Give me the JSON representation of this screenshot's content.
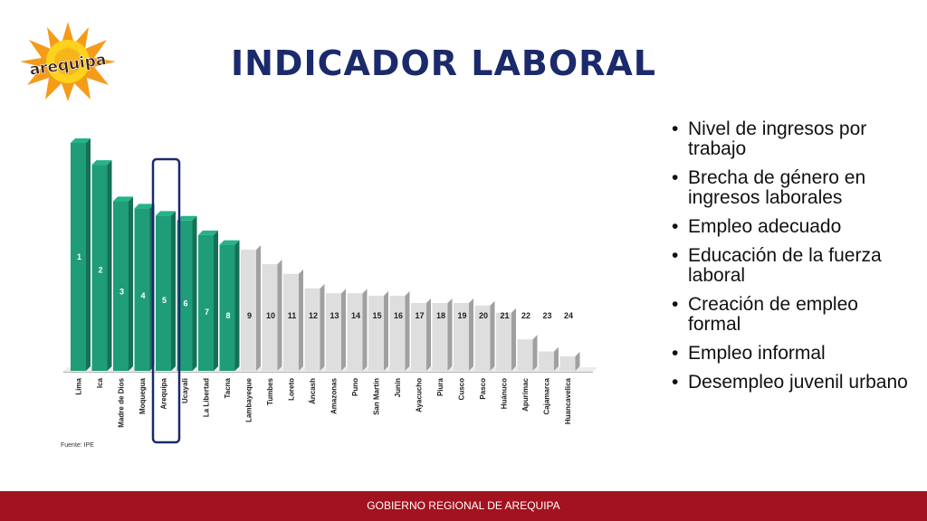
{
  "slide": {
    "title": "INDICADOR LABORAL",
    "logo_text": "arequipa",
    "footer": "GOBIERNO REGIONAL DE AREQUIPA",
    "bullets": [
      "Nivel de ingresos por trabajo",
      "Brecha de género en ingresos laborales",
      "Empleo adecuado",
      "Educación de la fuerza laboral",
      "Creación de empleo formal",
      "Empleo informal",
      "Desempleo juvenil urbano"
    ]
  },
  "colors": {
    "title": "#1b2a6b",
    "green_bar": "#1f9c78",
    "grey_bar": "#dedede",
    "highlight_box": "#1b2a6b",
    "footer_bg": "#a3121f"
  },
  "chart_data": {
    "type": "bar",
    "source": "Fuente: IPE",
    "categories": [
      "Lima",
      "Ica",
      "Madre de Dios",
      "Moquegua",
      "Arequipa",
      "Ucayali",
      "La Libertad",
      "Tacna",
      "Lambayeque",
      "Tumbes",
      "Loreto",
      "Áncash",
      "Amazonas",
      "Puno",
      "San Martín",
      "Junín",
      "Ayacucho",
      "Piura",
      "Cusco",
      "Pasco",
      "Huánuco",
      "Apurímac",
      "Cajamarca",
      "Huancavelica"
    ],
    "values": [
      9.4,
      8.5,
      7.0,
      6.7,
      6.4,
      6.2,
      5.6,
      5.2,
      5.0,
      4.4,
      4.0,
      3.4,
      3.2,
      3.2,
      3.1,
      3.1,
      2.8,
      2.8,
      2.8,
      2.7,
      2.4,
      1.3,
      0.8,
      0.6
    ],
    "labels": [
      "1",
      "2",
      "3",
      "4",
      "5",
      "6",
      "7",
      "8",
      "9",
      "10",
      "11",
      "12",
      "13",
      "14",
      "15",
      "16",
      "17",
      "18",
      "19",
      "20",
      "21",
      "22",
      "23",
      "24"
    ],
    "highlighted_category": "Arequipa",
    "green_count": 8
  }
}
